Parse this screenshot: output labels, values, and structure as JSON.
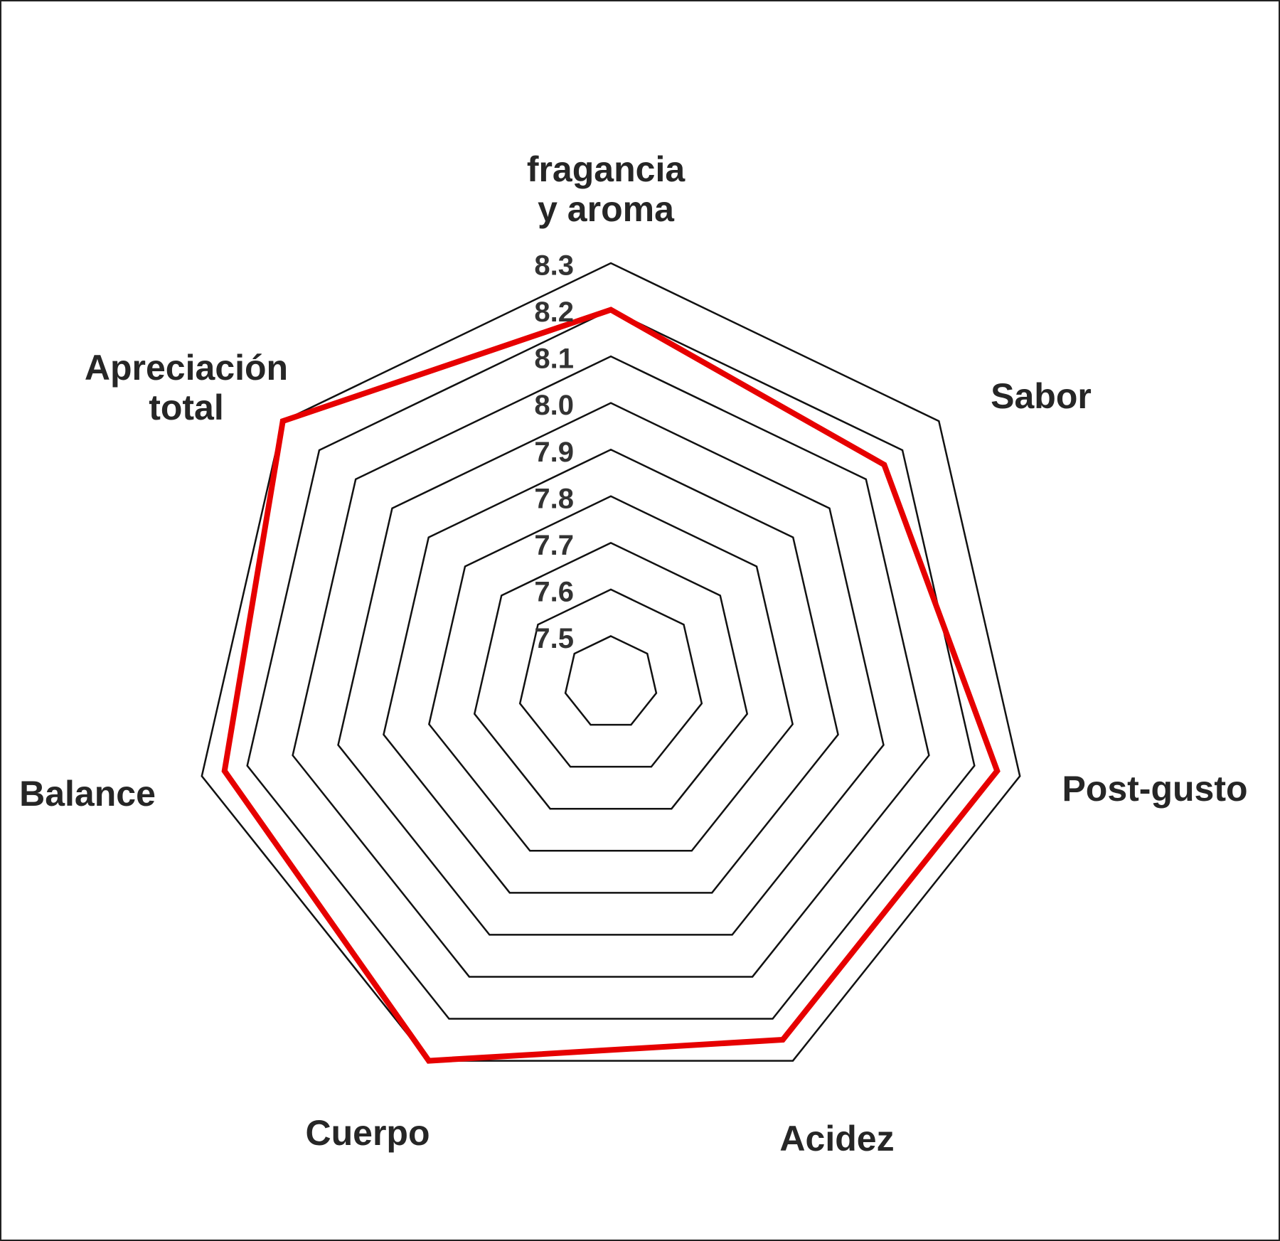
{
  "chart_data": {
    "type": "radar",
    "categories": [
      "fragancia y aroma",
      "Sabor",
      "Post-gusto",
      "Acidez",
      "Cuerpo",
      "Balance",
      "Apreciación total"
    ],
    "values": [
      8.2,
      8.15,
      8.25,
      8.25,
      8.3,
      8.25,
      8.3
    ],
    "color": "#e60000",
    "rlim": [
      7.4,
      8.3
    ],
    "rticks": [
      7.5,
      7.6,
      7.7,
      7.8,
      7.9,
      {
        "value": 8,
        "label": "8.0"
      },
      8.1,
      8.2,
      8.3
    ]
  }
}
